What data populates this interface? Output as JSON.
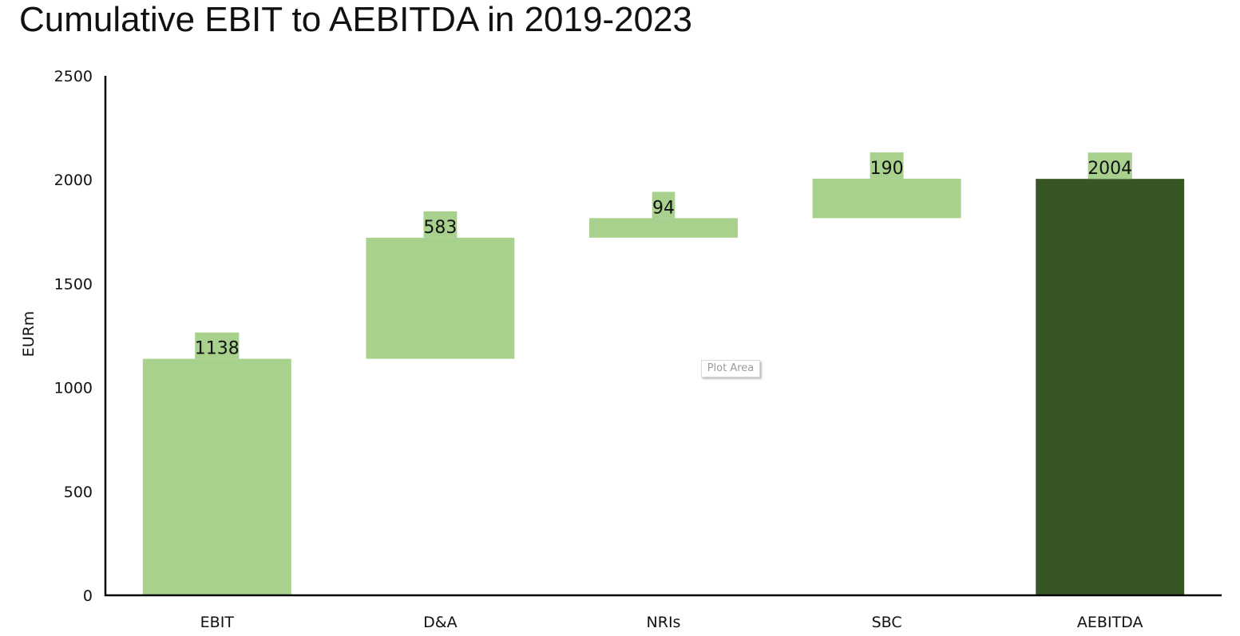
{
  "title": "Cumulative EBIT to AEBITDA in 2019-2023",
  "tooltip": "Plot Area",
  "colors": {
    "increase": "#a9d18e",
    "total": "#375623",
    "axis": "#000000"
  },
  "chart_data": {
    "type": "bar",
    "subtype": "waterfall",
    "title": "Cumulative EBIT to AEBITDA in 2019-2023",
    "xlabel": "",
    "ylabel": "EURm",
    "ylim": [
      0,
      2500
    ],
    "yticks": [
      "0",
      "500",
      "1000",
      "1500",
      "2000",
      "2500"
    ],
    "grid": false,
    "legend": "none",
    "categories": [
      "EBIT",
      "D&A",
      "NRIs",
      "SBC",
      "AEBITDA"
    ],
    "values": [
      1138,
      583,
      94,
      190,
      2004
    ],
    "labels": [
      "1138",
      "583",
      "94",
      "190",
      "2004"
    ],
    "kinds": [
      "total",
      "increase",
      "increase",
      "increase",
      "total"
    ]
  }
}
